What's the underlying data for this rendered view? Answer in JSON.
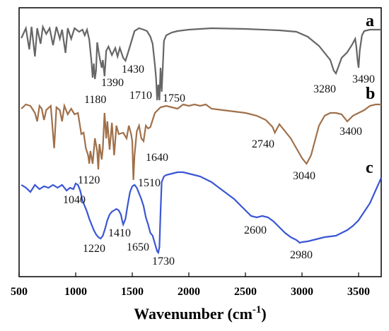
{
  "chart_data": {
    "type": "line",
    "xlabel": "Wavenumber (cm",
    "xlabel_superscript": "-1",
    "xlabel_close": ")",
    "xlim": [
      500,
      3700
    ],
    "x_ticks": [
      500,
      1000,
      1500,
      2000,
      2500,
      3000,
      3500
    ],
    "y_axis_shown": false,
    "grid": false,
    "series": [
      {
        "name": "a",
        "color": "#666666",
        "points": [
          [
            520,
            54
          ],
          [
            560,
            40
          ],
          [
            590,
            70
          ],
          [
            610,
            38
          ],
          [
            640,
            80
          ],
          [
            660,
            40
          ],
          [
            690,
            62
          ],
          [
            710,
            38
          ],
          [
            740,
            48
          ],
          [
            770,
            40
          ],
          [
            800,
            64
          ],
          [
            830,
            38
          ],
          [
            860,
            55
          ],
          [
            880,
            42
          ],
          [
            910,
            75
          ],
          [
            930,
            40
          ],
          [
            960,
            55
          ],
          [
            990,
            40
          ],
          [
            1030,
            45
          ],
          [
            1060,
            42
          ],
          [
            1080,
            50
          ],
          [
            1100,
            42
          ],
          [
            1120,
            56
          ],
          [
            1140,
            88
          ],
          [
            1150,
            110
          ],
          [
            1160,
            90
          ],
          [
            1170,
            112
          ],
          [
            1180,
            100
          ],
          [
            1190,
            60
          ],
          [
            1210,
            80
          ],
          [
            1230,
            96
          ],
          [
            1240,
            85
          ],
          [
            1255,
            108
          ],
          [
            1270,
            72
          ],
          [
            1290,
            66
          ],
          [
            1320,
            78
          ],
          [
            1350,
            68
          ],
          [
            1370,
            80
          ],
          [
            1390,
            68
          ],
          [
            1420,
            82
          ],
          [
            1440,
            86
          ],
          [
            1460,
            76
          ],
          [
            1490,
            60
          ],
          [
            1520,
            44
          ],
          [
            1560,
            40
          ],
          [
            1600,
            42
          ],
          [
            1630,
            44
          ],
          [
            1660,
            52
          ],
          [
            1680,
            62
          ],
          [
            1700,
            92
          ],
          [
            1710,
            110
          ],
          [
            1720,
            142
          ],
          [
            1730,
            120
          ],
          [
            1740,
            142
          ],
          [
            1750,
            96
          ],
          [
            1760,
            130
          ],
          [
            1780,
            58
          ],
          [
            1800,
            50
          ],
          [
            1850,
            46
          ],
          [
            1900,
            44
          ],
          [
            2000,
            42
          ],
          [
            2200,
            40
          ],
          [
            2500,
            41
          ],
          [
            2800,
            43
          ],
          [
            2950,
            45
          ],
          [
            3050,
            52
          ],
          [
            3150,
            65
          ],
          [
            3250,
            85
          ],
          [
            3280,
            100
          ],
          [
            3300,
            104
          ],
          [
            3350,
            82
          ],
          [
            3400,
            74
          ],
          [
            3440,
            64
          ],
          [
            3470,
            55
          ],
          [
            3480,
            66
          ],
          [
            3490,
            84
          ],
          [
            3500,
            96
          ],
          [
            3510,
            72
          ],
          [
            3530,
            50
          ],
          [
            3550,
            44
          ],
          [
            3600,
            42
          ],
          [
            3650,
            42
          ],
          [
            3700,
            42
          ]
        ]
      },
      {
        "name": "b",
        "color": "#A0704A",
        "points": [
          [
            520,
            154
          ],
          [
            560,
            148
          ],
          [
            600,
            150
          ],
          [
            640,
            160
          ],
          [
            660,
            172
          ],
          [
            680,
            150
          ],
          [
            700,
            154
          ],
          [
            720,
            170
          ],
          [
            740,
            156
          ],
          [
            780,
            150
          ],
          [
            810,
            210
          ],
          [
            830,
            152
          ],
          [
            860,
            156
          ],
          [
            880,
            172
          ],
          [
            900,
            150
          ],
          [
            930,
            162
          ],
          [
            960,
            154
          ],
          [
            990,
            162
          ],
          [
            1020,
            160
          ],
          [
            1050,
            190
          ],
          [
            1070,
            188
          ],
          [
            1090,
            210
          ],
          [
            1110,
            220
          ],
          [
            1120,
            232
          ],
          [
            1130,
            214
          ],
          [
            1150,
            232
          ],
          [
            1170,
            196
          ],
          [
            1190,
            214
          ],
          [
            1200,
            240
          ],
          [
            1210,
            204
          ],
          [
            1230,
            226
          ],
          [
            1240,
            210
          ],
          [
            1255,
            160
          ],
          [
            1270,
            196
          ],
          [
            1280,
            172
          ],
          [
            1300,
            212
          ],
          [
            1320,
            174
          ],
          [
            1340,
            220
          ],
          [
            1360,
            178
          ],
          [
            1380,
            190
          ],
          [
            1420,
            188
          ],
          [
            1450,
            196
          ],
          [
            1470,
            178
          ],
          [
            1490,
            190
          ],
          [
            1500,
            200
          ],
          [
            1510,
            255
          ],
          [
            1520,
            220
          ],
          [
            1540,
            186
          ],
          [
            1560,
            178
          ],
          [
            1580,
            196
          ],
          [
            1600,
            200
          ],
          [
            1620,
            178
          ],
          [
            1640,
            182
          ],
          [
            1660,
            180
          ],
          [
            1680,
            170
          ],
          [
            1700,
            160
          ],
          [
            1750,
            152
          ],
          [
            1800,
            150
          ],
          [
            1850,
            152
          ],
          [
            1900,
            154
          ],
          [
            1950,
            148
          ],
          [
            2000,
            150
          ],
          [
            2050,
            148
          ],
          [
            2100,
            150
          ],
          [
            2150,
            148
          ],
          [
            2200,
            154
          ],
          [
            2300,
            156
          ],
          [
            2400,
            158
          ],
          [
            2500,
            160
          ],
          [
            2600,
            164
          ],
          [
            2680,
            170
          ],
          [
            2740,
            180
          ],
          [
            2760,
            188
          ],
          [
            2800,
            176
          ],
          [
            2850,
            186
          ],
          [
            2900,
            196
          ],
          [
            2950,
            210
          ],
          [
            3000,
            224
          ],
          [
            3040,
            232
          ],
          [
            3080,
            220
          ],
          [
            3150,
            178
          ],
          [
            3200,
            164
          ],
          [
            3250,
            160
          ],
          [
            3300,
            160
          ],
          [
            3350,
            162
          ],
          [
            3400,
            172
          ],
          [
            3450,
            164
          ],
          [
            3500,
            160
          ],
          [
            3550,
            156
          ],
          [
            3600,
            150
          ],
          [
            3650,
            148
          ],
          [
            3700,
            148
          ]
        ]
      },
      {
        "name": "c",
        "color": "#3A56D4",
        "points": [
          [
            520,
            262
          ],
          [
            560,
            266
          ],
          [
            600,
            272
          ],
          [
            640,
            262
          ],
          [
            680,
            268
          ],
          [
            720,
            264
          ],
          [
            760,
            266
          ],
          [
            800,
            262
          ],
          [
            840,
            266
          ],
          [
            880,
            262
          ],
          [
            920,
            270
          ],
          [
            950,
            266
          ],
          [
            980,
            268
          ],
          [
            1000,
            260
          ],
          [
            1020,
            262
          ],
          [
            1040,
            270
          ],
          [
            1060,
            284
          ],
          [
            1080,
            292
          ],
          [
            1100,
            300
          ],
          [
            1120,
            310
          ],
          [
            1140,
            318
          ],
          [
            1160,
            326
          ],
          [
            1180,
            332
          ],
          [
            1200,
            336
          ],
          [
            1220,
            338
          ],
          [
            1240,
            334
          ],
          [
            1260,
            324
          ],
          [
            1280,
            312
          ],
          [
            1300,
            304
          ],
          [
            1320,
            300
          ],
          [
            1340,
            298
          ],
          [
            1360,
            296
          ],
          [
            1380,
            298
          ],
          [
            1400,
            304
          ],
          [
            1410,
            312
          ],
          [
            1420,
            318
          ],
          [
            1440,
            310
          ],
          [
            1460,
            290
          ],
          [
            1480,
            272
          ],
          [
            1500,
            264
          ],
          [
            1520,
            262
          ],
          [
            1540,
            266
          ],
          [
            1560,
            274
          ],
          [
            1580,
            282
          ],
          [
            1600,
            292
          ],
          [
            1620,
            308
          ],
          [
            1640,
            318
          ],
          [
            1660,
            330
          ],
          [
            1680,
            334
          ],
          [
            1700,
            345
          ],
          [
            1720,
            356
          ],
          [
            1730,
            358
          ],
          [
            1740,
            350
          ],
          [
            1750,
            300
          ],
          [
            1760,
            258
          ],
          [
            1780,
            250
          ],
          [
            1800,
            248
          ],
          [
            1850,
            246
          ],
          [
            1900,
            244
          ],
          [
            1950,
            244
          ],
          [
            2000,
            246
          ],
          [
            2050,
            248
          ],
          [
            2100,
            250
          ],
          [
            2150,
            254
          ],
          [
            2200,
            258
          ],
          [
            2250,
            264
          ],
          [
            2300,
            270
          ],
          [
            2350,
            276
          ],
          [
            2400,
            282
          ],
          [
            2450,
            290
          ],
          [
            2500,
            298
          ],
          [
            2550,
            306
          ],
          [
            2600,
            308
          ],
          [
            2650,
            306
          ],
          [
            2700,
            308
          ],
          [
            2750,
            314
          ],
          [
            2800,
            322
          ],
          [
            2850,
            330
          ],
          [
            2900,
            336
          ],
          [
            2950,
            340
          ],
          [
            2980,
            344
          ],
          [
            3000,
            343
          ],
          [
            3050,
            342
          ],
          [
            3100,
            340
          ],
          [
            3150,
            338
          ],
          [
            3200,
            336
          ],
          [
            3250,
            335
          ],
          [
            3300,
            334
          ],
          [
            3350,
            330
          ],
          [
            3400,
            326
          ],
          [
            3450,
            320
          ],
          [
            3500,
            312
          ],
          [
            3550,
            300
          ],
          [
            3600,
            288
          ],
          [
            3650,
            270
          ],
          [
            3700,
            252
          ]
        ]
      }
    ],
    "trace_labels": [
      "a",
      "b",
      "c"
    ],
    "annotations": [
      "1180",
      "1390",
      "1430",
      "1710",
      "1750",
      "3280",
      "3490",
      "1120",
      "1640",
      "2740",
      "3040",
      "3400",
      "1510",
      "1040",
      "1410",
      "1220",
      "1650",
      "1730",
      "2600",
      "2980"
    ]
  }
}
